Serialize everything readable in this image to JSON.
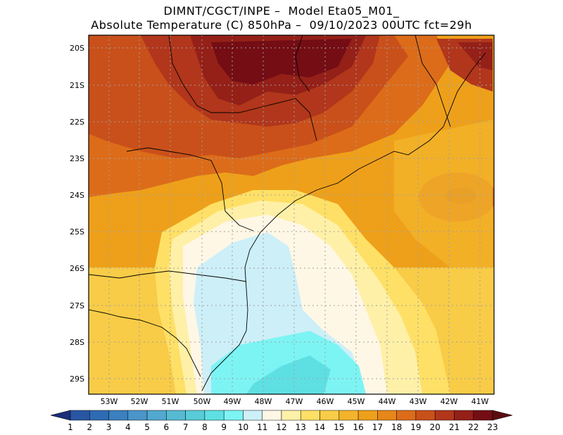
{
  "header": {
    "line1": "DIMNT/CGCT/INPE –  Model Eta05_M01_",
    "line2": "Absolute Temperature (C) 850hPa –  09/10/2023 00UTC fct=29h"
  },
  "map": {
    "lat_ticks": [
      "20S",
      "21S",
      "22S",
      "23S",
      "24S",
      "25S",
      "26S",
      "27S",
      "28S",
      "29S"
    ],
    "lon_ticks": [
      "53W",
      "52W",
      "51W",
      "50W",
      "49W",
      "48W",
      "47W",
      "46W",
      "45W",
      "44W",
      "43W",
      "42W",
      "41W"
    ]
  },
  "colorbar": {
    "labels": [
      "1",
      "2",
      "3",
      "4",
      "5",
      "6",
      "7",
      "8",
      "9",
      "10",
      "11",
      "12",
      "13",
      "14",
      "15",
      "16",
      "17",
      "18",
      "19",
      "20",
      "21",
      "22",
      "23"
    ],
    "colors": [
      "#1f3f8f",
      "#2856a3",
      "#2f6bb3",
      "#3b80bf",
      "#4a95c9",
      "#52a8cf",
      "#56bad3",
      "#58ccd8",
      "#5ee0e3",
      "#7df4f4",
      "#cdeff8",
      "#fff7e6",
      "#fff0a8",
      "#ffe066",
      "#f8cc47",
      "#f3b42b",
      "#eea01a",
      "#e68719",
      "#dc6c19",
      "#c9501a",
      "#b1361b",
      "#942018",
      "#740d14"
    ],
    "left_arrow": "#1b2f7a",
    "right_arrow": "#5c0c10"
  },
  "colors": {
    "land_line": "#000000",
    "grid": "#a0a0a0"
  }
}
